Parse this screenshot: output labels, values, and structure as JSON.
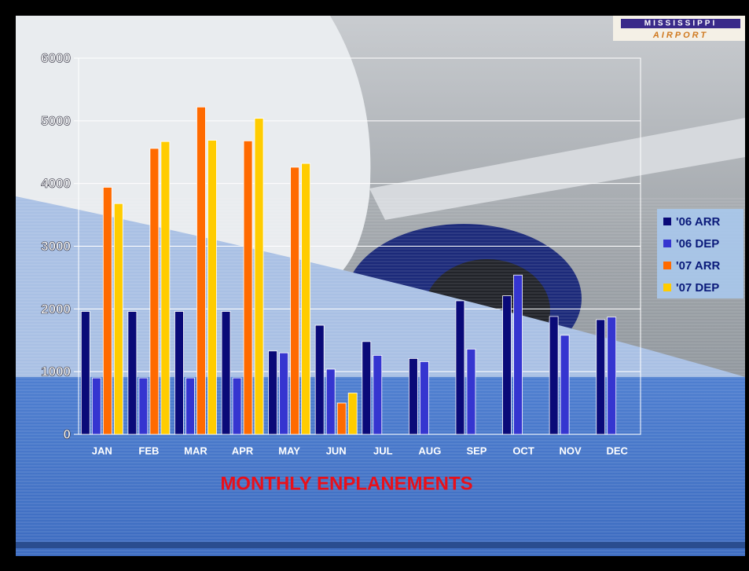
{
  "logo": {
    "line1": "MISSISSIPPI",
    "line2": "AIRPORT"
  },
  "chart_data": {
    "type": "bar",
    "title": "MONTHLY  ENPLANEMENTS",
    "categories": [
      "JAN",
      "FEB",
      "MAR",
      "APR",
      "MAY",
      "JUN",
      "JUL",
      "AUG",
      "SEP",
      "OCT",
      "NOV",
      "DEC"
    ],
    "series": [
      {
        "name": "'06 ARR",
        "color": "#0a0a78",
        "values": [
          1960,
          1960,
          1960,
          1960,
          1330,
          1740,
          1480,
          1210,
          2130,
          2210,
          1880,
          1830
        ]
      },
      {
        "name": "'06 DEP",
        "color": "#3535d0",
        "values": [
          900,
          900,
          900,
          900,
          1300,
          1040,
          1260,
          1160,
          1360,
          2540,
          1580,
          1870
        ]
      },
      {
        "name": "'07 ARR",
        "color": "#ff6a00",
        "values": [
          3940,
          4560,
          5220,
          4680,
          4260,
          500,
          null,
          null,
          null,
          null,
          null,
          null
        ]
      },
      {
        "name": "'07 DEP",
        "color": "#ffcc00",
        "values": [
          3680,
          4670,
          4690,
          5040,
          4320,
          660,
          null,
          null,
          null,
          null,
          null,
          null
        ]
      }
    ],
    "ylim": [
      0,
      6000
    ],
    "yticks": [
      0,
      1000,
      2000,
      3000,
      4000,
      5000,
      6000
    ],
    "grid": true,
    "legend": "right"
  }
}
